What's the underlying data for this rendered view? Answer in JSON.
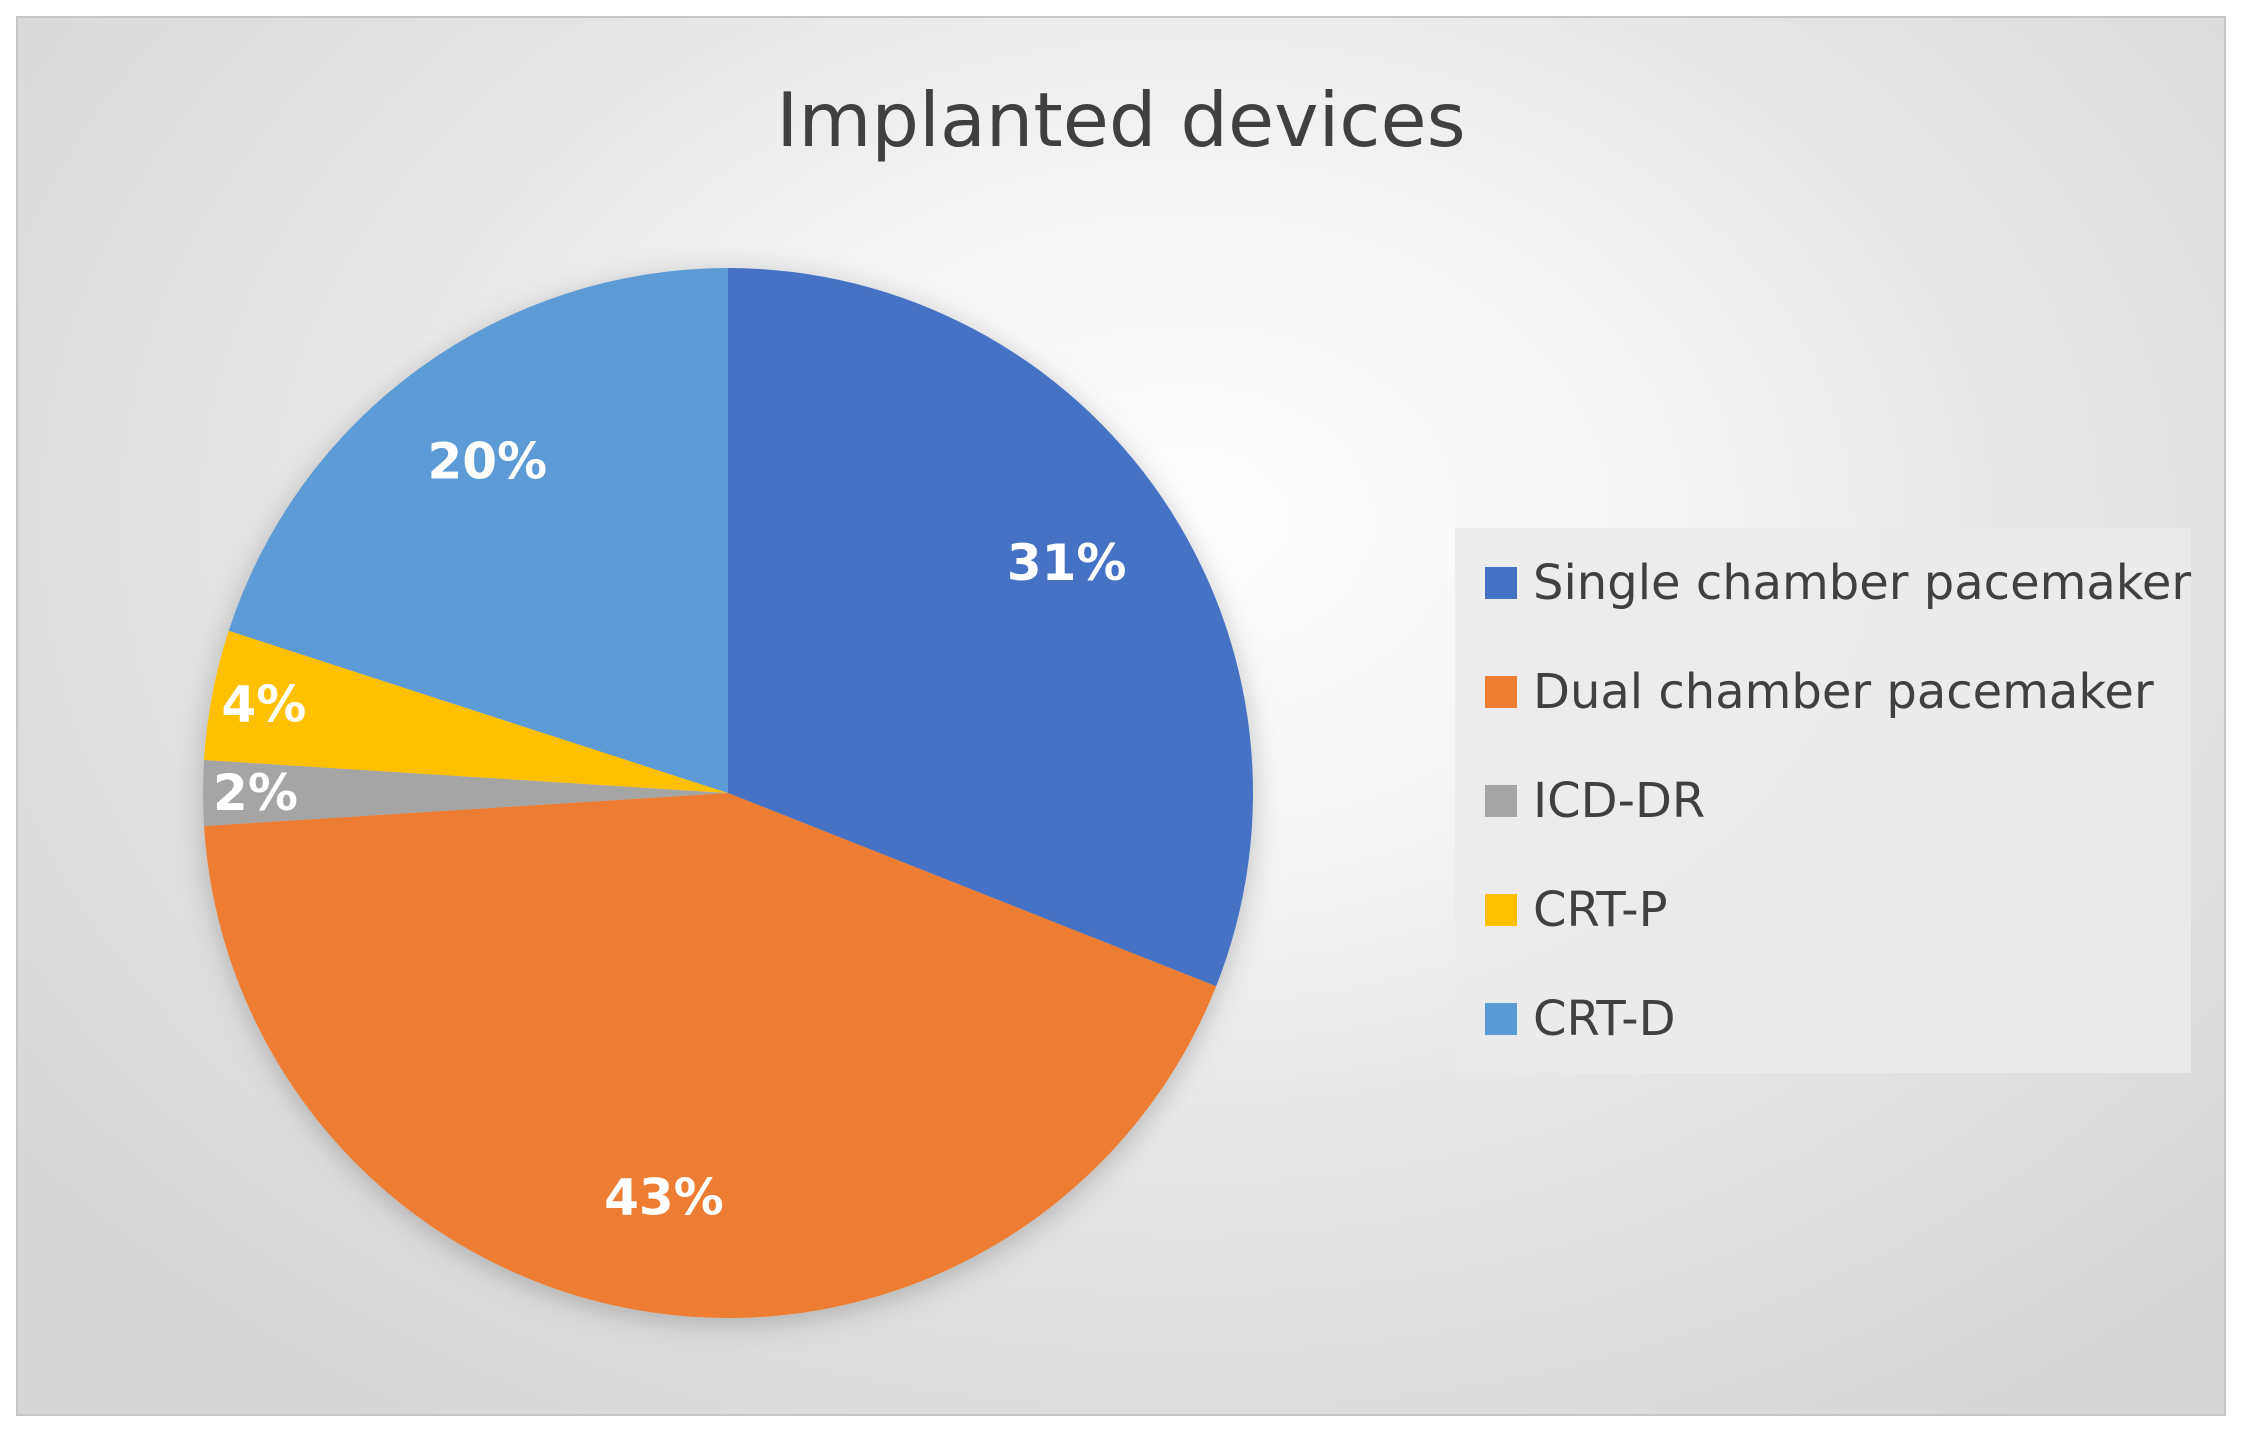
{
  "chart_data": {
    "type": "pie",
    "title": "Implanted devices",
    "start_angle_deg": 0,
    "direction": "clockwise",
    "legend_position": "right",
    "slices": [
      {
        "name": "Single chamber pacemaker",
        "value": 31,
        "label": "31%",
        "color": "#4472C4"
      },
      {
        "name": "Dual chamber pacemaker",
        "value": 43,
        "label": "43%",
        "color": "#ED7D31"
      },
      {
        "name": "ICD-DR",
        "value": 2,
        "label": "2%",
        "color": "#A5A5A5"
      },
      {
        "name": "CRT-P",
        "value": 4,
        "label": "4%",
        "color": "#FFC000"
      },
      {
        "name": "CRT-D",
        "value": 20,
        "label": "20%",
        "color": "#5B9BD5"
      }
    ]
  }
}
